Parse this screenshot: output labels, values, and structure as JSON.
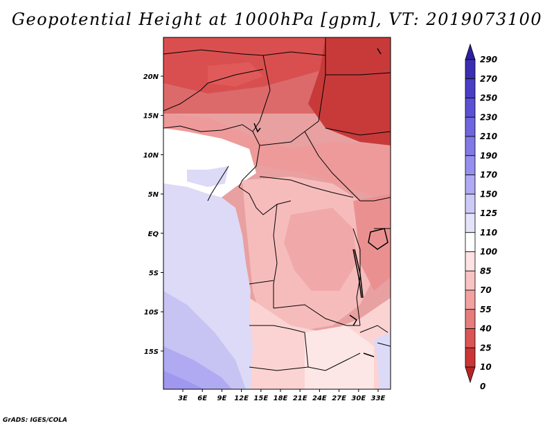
{
  "title": "Geopotential Height at 1000hPa [gpm], VT: 2019073100",
  "credit": "GrADS: IGES/COLA",
  "map": {
    "lat_ticks": [
      "20N",
      "15N",
      "10N",
      "5N",
      "EQ",
      "5S",
      "10S",
      "15S"
    ],
    "lon_ticks": [
      "3E",
      "6E",
      "9E",
      "12E",
      "15E",
      "18E",
      "21E",
      "24E",
      "27E",
      "30E",
      "33E"
    ]
  },
  "colorbar": {
    "labels": [
      "290",
      "270",
      "250",
      "230",
      "210",
      "190",
      "170",
      "150",
      "125",
      "110",
      "100",
      "85",
      "70",
      "55",
      "40",
      "25",
      "10",
      "0"
    ],
    "colors": [
      "#2d1fa0",
      "#3a2eb3",
      "#4a3ec6",
      "#5c51d4",
      "#6f66de",
      "#8279e6",
      "#978fee",
      "#b0aaf4",
      "#cdcaf8",
      "#e4e3fa",
      "#ffffff",
      "#fde3e3",
      "#f9c3c3",
      "#f2a1a1",
      "#e77c7c",
      "#dc5555",
      "#cc3535",
      "#b62525"
    ]
  }
}
